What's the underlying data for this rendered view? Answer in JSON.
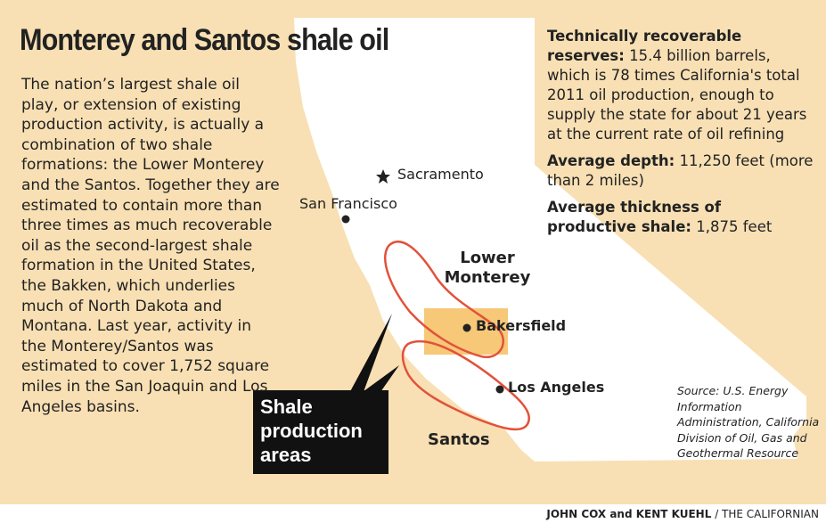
{
  "title": "Monterey and Santos shale oil",
  "body": "The nation’s largest shale oil play, or extension of existing production activity, is actually a combination of two shale formations: the Lower Monterey and the Santos. Together they are estimated to contain more than three times as much recoverable oil as the second-largest shale formation in the United States, the Bakken, which underlies much of North Dakota and Montana. Last year, activity in the Monterey/Santos was estimated to cover 1,752 square miles in the San Joaquin and Los Angeles basins.",
  "stats": [
    {
      "label": "Technically recoverable reserves:",
      "text": "15.4 billion barrels, which is 78 times California's total 2011 oil production, enough to supply the state for about 21 years at the current rate of oil refining"
    },
    {
      "label": "Average depth:",
      "text": "11,250 feet (more than 2 miles)"
    },
    {
      "label": "Average thickness of productive shale:",
      "text": "1,875 feet"
    }
  ],
  "places": [
    "Sacramento",
    "San Francisco",
    "Bakersfield",
    "Los Angeles"
  ],
  "regions": [
    "Lower Monterey",
    "Santos"
  ],
  "callout": "Shale production areas",
  "source": "Source: U.S. Energy Information Administration, California Division of Oil, Gas and Geothermal Resource",
  "credit": {
    "authors": "JOHN COX and KENT KUEHL",
    "publisher": "/ THE CALIFORNIAN"
  }
}
